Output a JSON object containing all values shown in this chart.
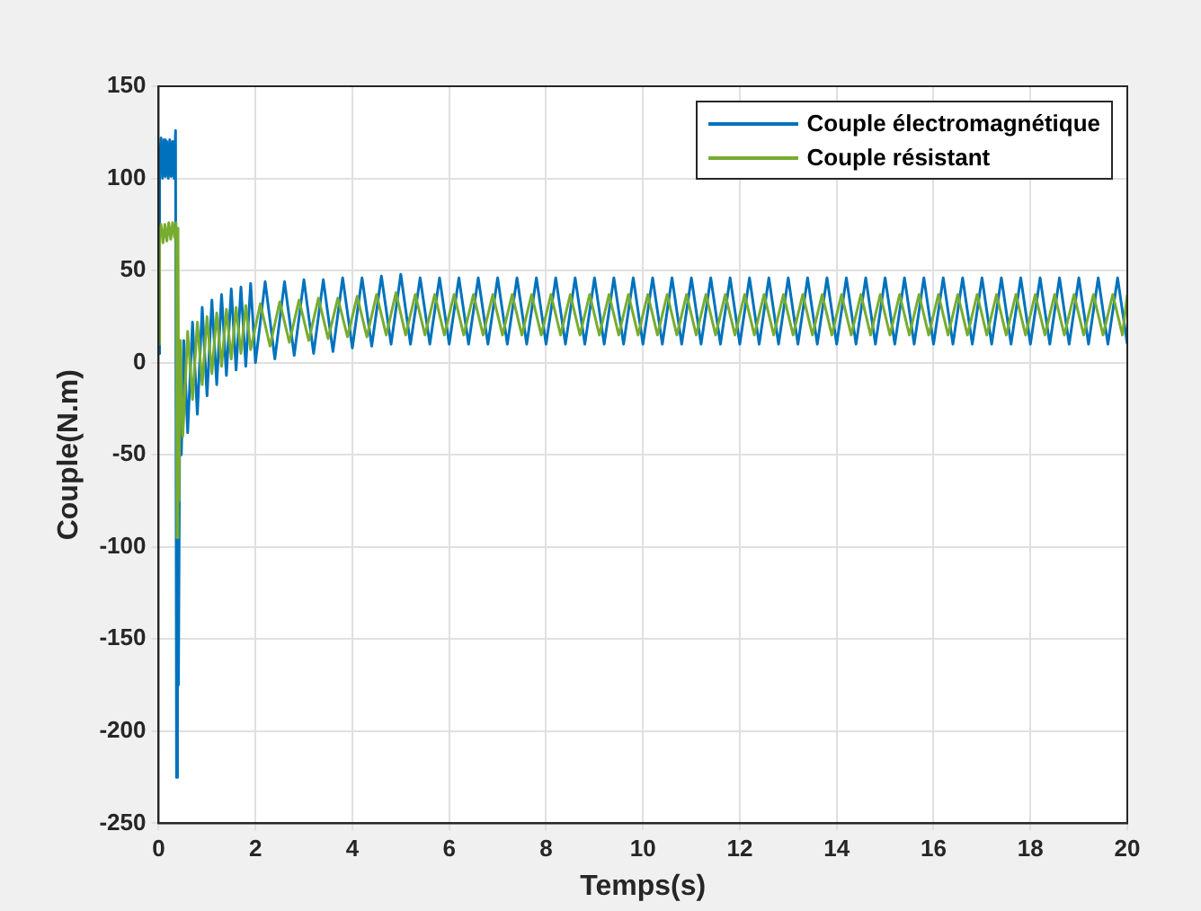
{
  "chart_data": {
    "type": "line",
    "xlabel": "Temps(s)",
    "ylabel": "Couple(N.m)",
    "xlim": [
      0,
      20
    ],
    "xticks": [
      0,
      2,
      4,
      6,
      8,
      10,
      12,
      14,
      16,
      18,
      20
    ],
    "ylim": [
      -250,
      150
    ],
    "yticks": [
      -250,
      -200,
      -150,
      -100,
      -50,
      0,
      50,
      100,
      150
    ],
    "grid": true,
    "legend": "top right",
    "series": [
      {
        "name": "Couple électromagnétique",
        "color": "#0072bd",
        "x": [
          0,
          0.02,
          0.05,
          0.08,
          0.11,
          0.14,
          0.17,
          0.2,
          0.23,
          0.26,
          0.29,
          0.32,
          0.35,
          0.37,
          0.39,
          0.41,
          0.44,
          0.47,
          0.52,
          0.6,
          0.7,
          0.8,
          0.9,
          1,
          1.1,
          1.2,
          1.3,
          1.4,
          1.5,
          1.6,
          1.7,
          1.8,
          1.9,
          2,
          2.2,
          2.4,
          2.6,
          2.8,
          3,
          3.2,
          3.4,
          3.6,
          3.8,
          4,
          4.2,
          4.4,
          4.6,
          4.8,
          5,
          5.2,
          5.4,
          5.6,
          5.8,
          6,
          6.2,
          6.4,
          6.6,
          6.8,
          7,
          7.2,
          7.4,
          7.6,
          7.8,
          8,
          8.2,
          8.4,
          8.6,
          8.8,
          9,
          9.2,
          9.4,
          9.6,
          9.8,
          10,
          10.2,
          10.4,
          10.6,
          10.8,
          11,
          11.2,
          11.4,
          11.6,
          11.8,
          12,
          12.2,
          12.4,
          12.6,
          12.8,
          13,
          13.2,
          13.4,
          13.6,
          13.8,
          14,
          14.2,
          14.4,
          14.6,
          14.8,
          15,
          15.2,
          15.4,
          15.6,
          15.8,
          16,
          16.2,
          16.4,
          16.6,
          16.8,
          17,
          17.2,
          17.4,
          17.6,
          17.8,
          18,
          18.2,
          18.4,
          18.6,
          18.8,
          19,
          19.2,
          19.4,
          19.6,
          19.8,
          20
        ],
        "values": [
          5,
          110,
          122,
          100,
          121,
          101,
          120,
          100,
          121,
          101,
          120,
          100,
          126,
          -225,
          60,
          -175,
          -10,
          -50,
          12,
          -38,
          22,
          -28,
          30,
          -18,
          34,
          -12,
          37,
          -7,
          40,
          -4,
          41,
          -2,
          43,
          0,
          44,
          2,
          44,
          4,
          45,
          5,
          45,
          6,
          46,
          8,
          46,
          9,
          47,
          10,
          48,
          10,
          46,
          10,
          46,
          10,
          46,
          10,
          46,
          10,
          46,
          10,
          46,
          10,
          46,
          10,
          46,
          10,
          46,
          10,
          46,
          10,
          46,
          10,
          46,
          10,
          46,
          10,
          46,
          10,
          46,
          10,
          46,
          10,
          46,
          10,
          46,
          10,
          46,
          10,
          46,
          10,
          46,
          10,
          46,
          10,
          46,
          10,
          46,
          10,
          46,
          10,
          46,
          10,
          46,
          10,
          46,
          10,
          46,
          10,
          46,
          10,
          46,
          10,
          46,
          10,
          46,
          10,
          46,
          10,
          46,
          10,
          46,
          10,
          46,
          10
        ]
      },
      {
        "name": "Couple résistant",
        "color": "#77ac30",
        "x": [
          0,
          0.02,
          0.05,
          0.09,
          0.13,
          0.17,
          0.21,
          0.25,
          0.29,
          0.33,
          0.36,
          0.38,
          0.4,
          0.42,
          0.45,
          0.5,
          0.6,
          0.7,
          0.8,
          0.9,
          1,
          1.1,
          1.2,
          1.3,
          1.4,
          1.5,
          1.6,
          1.7,
          1.8,
          1.9,
          2.1,
          2.3,
          2.5,
          2.7,
          2.9,
          3.1,
          3.3,
          3.5,
          3.7,
          3.9,
          4.1,
          4.3,
          4.5,
          4.7,
          4.9,
          5.1,
          5.3,
          5.5,
          5.7,
          5.9,
          6.1,
          6.3,
          6.5,
          6.7,
          6.9,
          7.1,
          7.3,
          7.5,
          7.7,
          7.9,
          8.1,
          8.3,
          8.5,
          8.7,
          8.9,
          9.1,
          9.3,
          9.5,
          9.7,
          9.9,
          10.1,
          10.3,
          10.5,
          10.7,
          10.9,
          11.1,
          11.3,
          11.5,
          11.7,
          11.9,
          12.1,
          12.3,
          12.5,
          12.7,
          12.9,
          13.1,
          13.3,
          13.5,
          13.7,
          13.9,
          14.1,
          14.3,
          14.5,
          14.7,
          14.9,
          15.1,
          15.3,
          15.5,
          15.7,
          15.9,
          16.1,
          16.3,
          16.5,
          16.7,
          16.9,
          17.1,
          17.3,
          17.5,
          17.7,
          17.9,
          18.1,
          18.3,
          18.5,
          18.7,
          18.9,
          19.1,
          19.3,
          19.5,
          19.7,
          19.9,
          20
        ],
        "values": [
          10,
          70,
          75,
          65,
          75,
          66,
          76,
          67,
          76,
          68,
          76,
          -95,
          73,
          -75,
          12,
          -40,
          17,
          -20,
          22,
          -12,
          25,
          -6,
          27,
          -2,
          29,
          2,
          30,
          5,
          31,
          7,
          32,
          9,
          33,
          11,
          34,
          12,
          35,
          13,
          35,
          14,
          36,
          14,
          37,
          15,
          38,
          15,
          37,
          15,
          37,
          15,
          37,
          15,
          37,
          15,
          37,
          15,
          37,
          15,
          37,
          15,
          37,
          15,
          37,
          15,
          37,
          15,
          37,
          15,
          37,
          15,
          37,
          15,
          37,
          15,
          37,
          15,
          37,
          15,
          37,
          15,
          37,
          15,
          37,
          15,
          37,
          15,
          37,
          15,
          37,
          15,
          37,
          15,
          37,
          15,
          37,
          15,
          37,
          15,
          37,
          15,
          37,
          15,
          37,
          15,
          37,
          15,
          37,
          15,
          37,
          15,
          37,
          15,
          37,
          15,
          37,
          15,
          37,
          15,
          37,
          15,
          37
        ]
      }
    ]
  }
}
